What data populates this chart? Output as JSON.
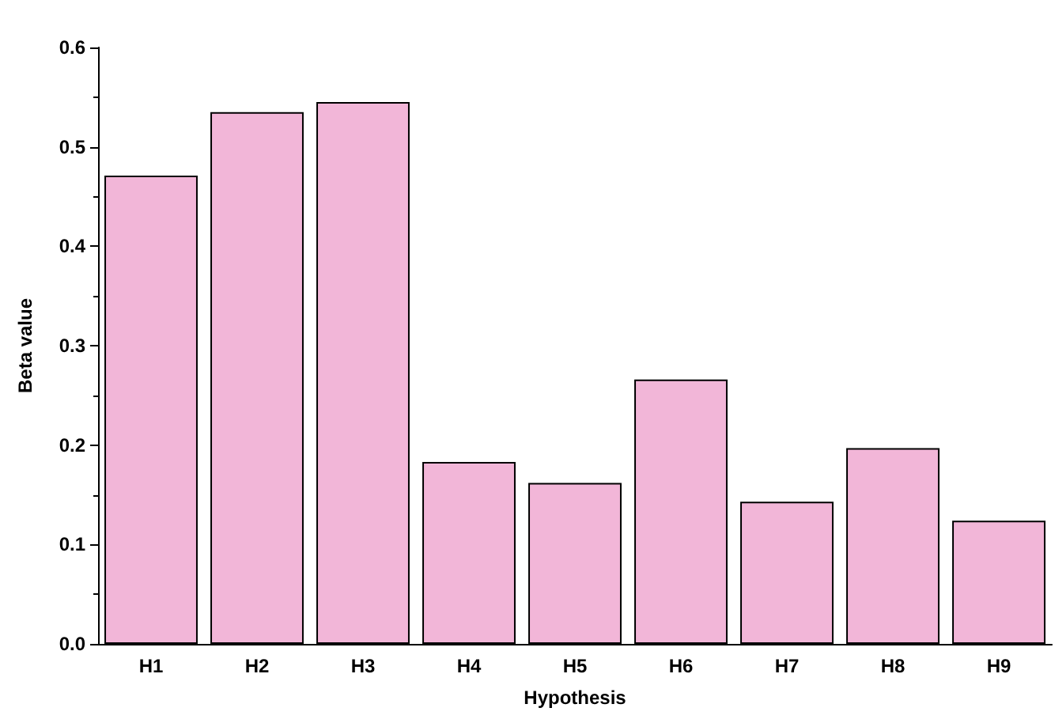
{
  "chart_data": {
    "type": "bar",
    "xlabel": "Hypothesis",
    "ylabel": "Beta value",
    "categories": [
      "H1",
      "H2",
      "H3",
      "H4",
      "H5",
      "H6",
      "H7",
      "H8",
      "H9"
    ],
    "values": [
      0.471,
      0.535,
      0.545,
      0.183,
      0.162,
      0.266,
      0.143,
      0.197,
      0.124
    ],
    "color": "#f2b6d8",
    "ylim": [
      0,
      0.6
    ],
    "yticks": [
      {
        "value": 0,
        "label": "0.0"
      },
      0.1,
      0.2,
      0.3,
      0.4,
      0.5,
      0.6
    ],
    "grid": false
  }
}
